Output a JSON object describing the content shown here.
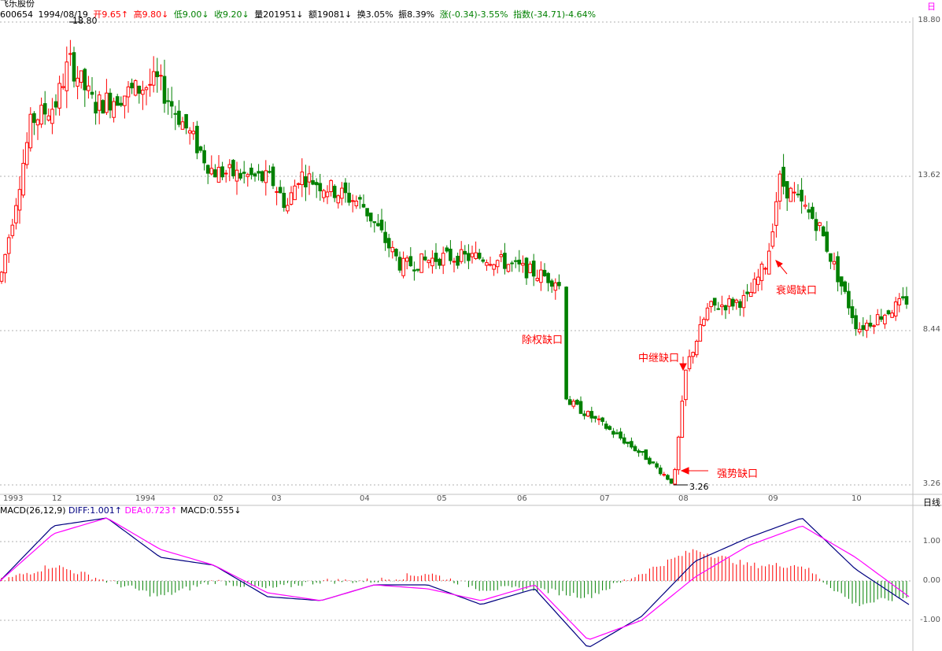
{
  "header": {
    "stock_name": "飞乐股份",
    "code": "600654",
    "date": "1994/08/19",
    "open": "开9.65↑",
    "high": "高9.80↓",
    "low": "低9.00↓",
    "close": "收9.20↓",
    "volume": "量201951↓",
    "amount": "额19081↓",
    "turnover": "换3.05%",
    "amplitude": "振8.39%",
    "change": "涨(-0.34)-3.55%",
    "index": "指数(-34.71)-4.64%"
  },
  "corner_label": "日",
  "price_axis": [
    "18.80",
    "13.62",
    "8.44",
    "3.26"
  ],
  "macd_axis": [
    "1.00",
    "0.00",
    "-1.00"
  ],
  "period_label": "日线",
  "date_labels": [
    "1993",
    "12",
    "1994",
    "02",
    "03",
    "04",
    "05",
    "06",
    "07",
    "08",
    "09",
    "10"
  ],
  "macd_label": {
    "name": "MACD(26,12,9)",
    "diff": "DIFF:1.001↑",
    "dea": "DEA:0.723↑",
    "macd": "MACD:0.555↓"
  },
  "price_marks": {
    "high": "18.80",
    "low": "3.26"
  },
  "annotations": {
    "gap_exright": "除权缺口",
    "gap_relay": "中继缺口",
    "gap_strong": "强势缺口",
    "gap_exhaust": "衰竭缺口"
  },
  "colors": {
    "up": "#ff0000",
    "down": "#008000",
    "diff": "#000080",
    "dea": "#ff00ff"
  },
  "chart_data": {
    "type": "candlestick",
    "price_range": [
      3.26,
      18.8
    ],
    "close_series": [
      {
        "x": "1993-09",
        "close": 10.1
      },
      {
        "x": "1993-10",
        "close": 15.5
      },
      {
        "x": "1993-11",
        "close": 16.0
      },
      {
        "x": "1993-12",
        "close": 17.5
      },
      {
        "x": "1993-12-20",
        "close": 16.0
      },
      {
        "x": "1994-01",
        "close": 16.3
      },
      {
        "x": "1994-01-20",
        "close": 16.8
      },
      {
        "x": "1994-02",
        "close": 13.8
      },
      {
        "x": "1994-03",
        "close": 13.5
      },
      {
        "x": "1994-03-20",
        "close": 12.6
      },
      {
        "x": "1994-04",
        "close": 13.7
      },
      {
        "x": "1994-04-20",
        "close": 12.7
      },
      {
        "x": "1994-05",
        "close": 10.6
      },
      {
        "x": "1994-05-20",
        "close": 10.9
      },
      {
        "x": "1994-06",
        "close": 10.9
      },
      {
        "x": "1994-06-20",
        "close": 10.1
      },
      {
        "x": "1994-07",
        "close": 6.1
      },
      {
        "x": "1994-07-15",
        "close": 5.2
      },
      {
        "x": "1994-07-25",
        "close": 4.2
      },
      {
        "x": "1994-08",
        "close": 3.3
      },
      {
        "x": "1994-08-05",
        "close": 7.2
      },
      {
        "x": "1994-08-15",
        "close": 9.2
      },
      {
        "x": "1994-08-25",
        "close": 9.5
      },
      {
        "x": "1994-09",
        "close": 10.8
      },
      {
        "x": "1994-09-10",
        "close": 13.5
      },
      {
        "x": "1994-09-25",
        "close": 12.0
      },
      {
        "x": "1994-10",
        "close": 8.5
      },
      {
        "x": "1994-10-15",
        "close": 9.5
      }
    ],
    "macd_range": [
      -1.8,
      1.8
    ],
    "diff_series": [
      0.0,
      1.4,
      1.6,
      0.6,
      0.4,
      -0.4,
      -0.5,
      -0.1,
      -0.1,
      -0.6,
      -0.2,
      -1.7,
      -0.9,
      0.5,
      1.1,
      1.6,
      0.3,
      -0.6
    ],
    "dea_series": [
      0.0,
      1.2,
      1.6,
      0.8,
      0.4,
      -0.3,
      -0.5,
      -0.1,
      -0.2,
      -0.5,
      -0.1,
      -1.5,
      -1.0,
      0.1,
      0.9,
      1.4,
      0.6,
      -0.4
    ]
  }
}
